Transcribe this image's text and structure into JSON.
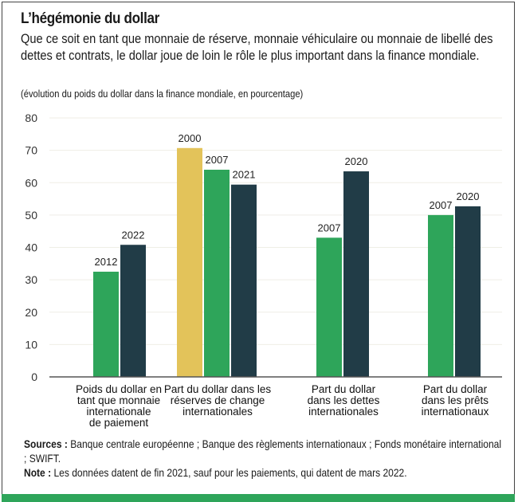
{
  "title": "L’hégémonie du dollar",
  "subtitle": "Que ce soit en tant que monnaie de réserve, monnaie véhiculaire ou monnaie de libellé des dettes et contrats, le dollar joue de loin le rôle le plus important dans la finance mondiale.",
  "unit_note": "(évolution du poids du dollar dans la finance mondiale, en pourcentage)",
  "colors": {
    "yellow": "#e3c35a",
    "green": "#2ea55a",
    "dark": "#213c47",
    "grid": "#efeee6",
    "axis": "#555555",
    "accent_bar": "#2ea55a"
  },
  "chart_data": {
    "type": "bar",
    "title": "L’hégémonie du dollar",
    "ylabel": "en pourcentage",
    "ylim": [
      0,
      80
    ],
    "yticks": [
      0,
      10,
      20,
      30,
      40,
      50,
      60,
      70,
      80
    ],
    "grid": true,
    "groups": [
      {
        "category_lines": [
          "Poids du dollar en",
          "tant que monnaie",
          "internationale",
          "de paiement"
        ],
        "bars": [
          {
            "label": "2012",
            "value": 32.5,
            "color": "green"
          },
          {
            "label": "2022",
            "value": 40.8,
            "color": "dark"
          }
        ]
      },
      {
        "category_lines": [
          "Part du dollar dans les",
          "réserves de change",
          "internationales"
        ],
        "bars": [
          {
            "label": "2000",
            "value": 70.7,
            "color": "yellow"
          },
          {
            "label": "2007",
            "value": 64.0,
            "color": "green"
          },
          {
            "label": "2021",
            "value": 59.4,
            "color": "dark"
          }
        ]
      },
      {
        "category_lines": [
          "Part du dollar",
          "dans les dettes",
          "internationales"
        ],
        "bars": [
          {
            "label": "2007",
            "value": 43.0,
            "color": "green"
          },
          {
            "label": "2020",
            "value": 63.5,
            "color": "dark"
          }
        ]
      },
      {
        "category_lines": [
          "Part du dollar",
          "dans les prêts",
          "internationaux"
        ],
        "bars": [
          {
            "label": "2007",
            "value": 50.0,
            "color": "green"
          },
          {
            "label": "2020",
            "value": 52.7,
            "color": "dark"
          }
        ]
      }
    ]
  },
  "footer": {
    "sources_label": "Sources :",
    "sources_text": " Banque centrale européenne ; Banque des règlements internationaux ; Fonds monétaire international ; SWIFT.",
    "note_label": "Note :",
    "note_text": " Les données datent de fin 2021, sauf pour les paiements, qui datent de mars 2022."
  }
}
